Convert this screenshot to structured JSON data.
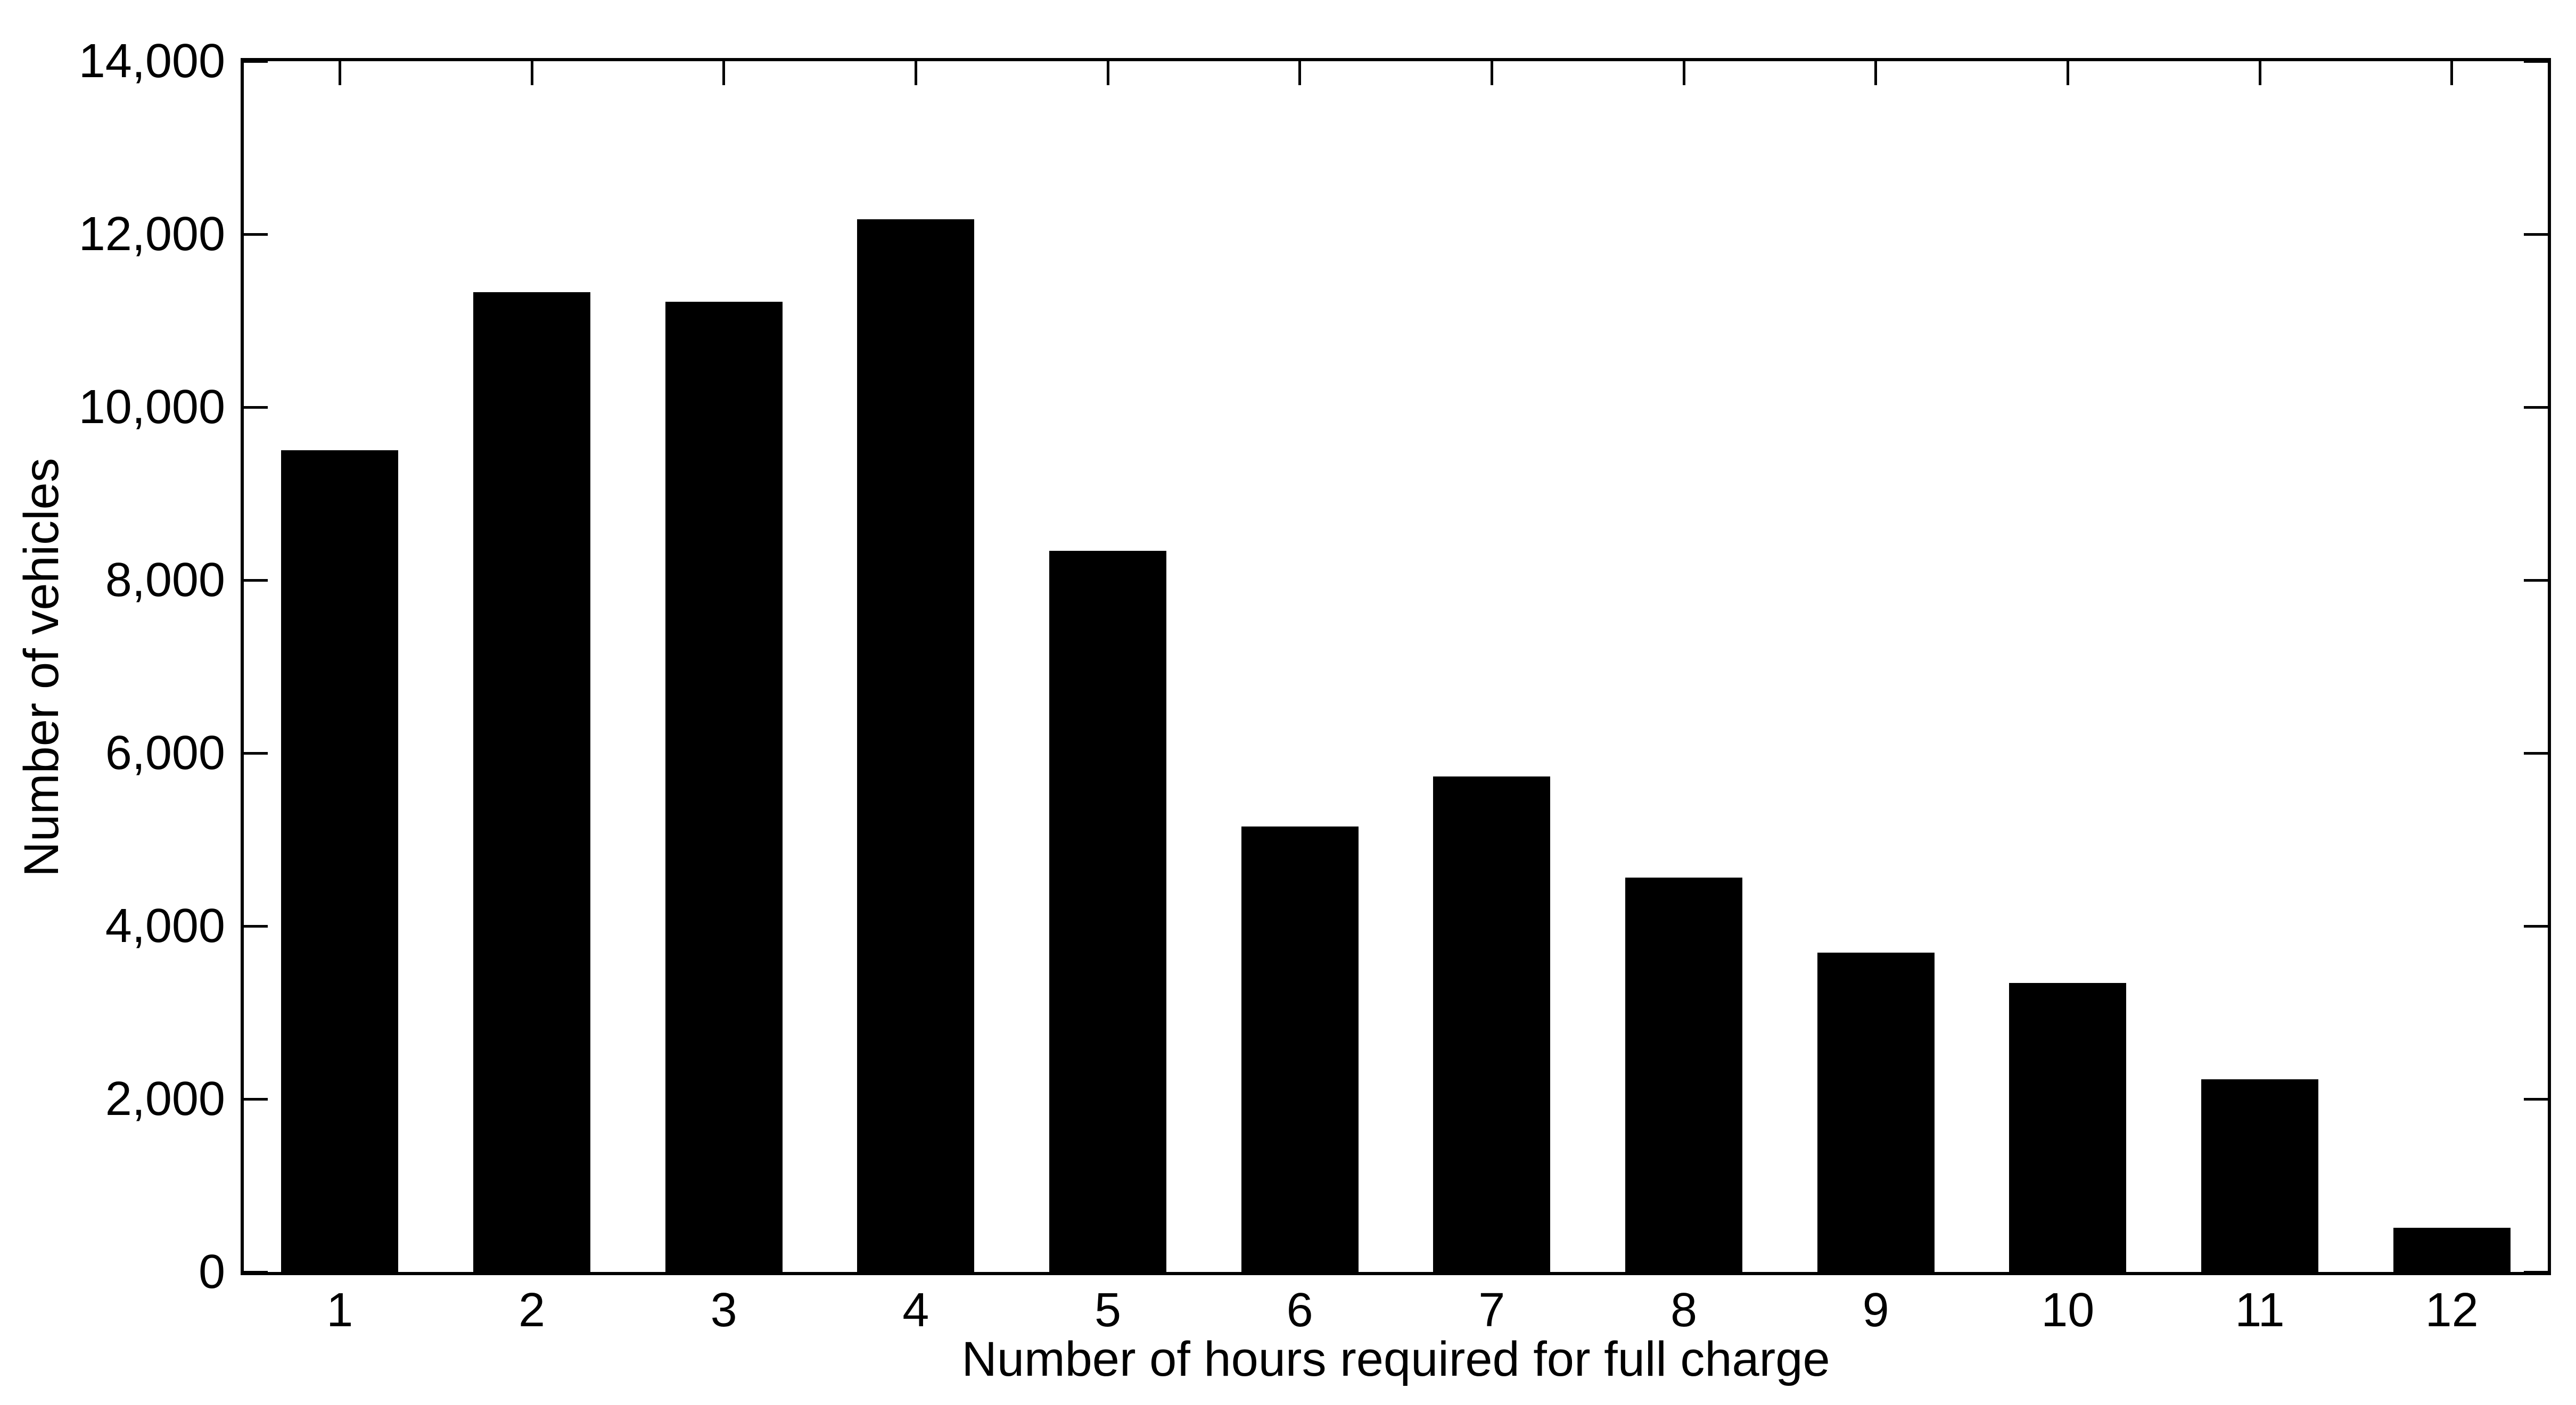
{
  "chart_data": {
    "type": "bar",
    "title": "",
    "xlabel": "Number of hours required for full charge",
    "ylabel": "Number of vehicles",
    "categories": [
      "1",
      "2",
      "3",
      "4",
      "5",
      "6",
      "7",
      "8",
      "9",
      "10",
      "11",
      "12"
    ],
    "values": [
      9500,
      11330,
      11220,
      12170,
      8340,
      5150,
      5730,
      4560,
      3690,
      3340,
      2230,
      510
    ],
    "ylim": [
      0,
      14000
    ],
    "yticks": [
      0,
      2000,
      4000,
      6000,
      8000,
      10000,
      12000,
      14000
    ],
    "ytick_labels": [
      "0",
      "2,000",
      "4,000",
      "6,000",
      "8,000",
      "10,000",
      "12,000",
      "14,000"
    ],
    "x_data_range": [
      0.5,
      12.5
    ],
    "bar_width_fraction": 0.61,
    "grid": false,
    "legend": "none",
    "bar_color": "#000000",
    "axis_color": "#000000",
    "background_color": "#ffffff"
  }
}
